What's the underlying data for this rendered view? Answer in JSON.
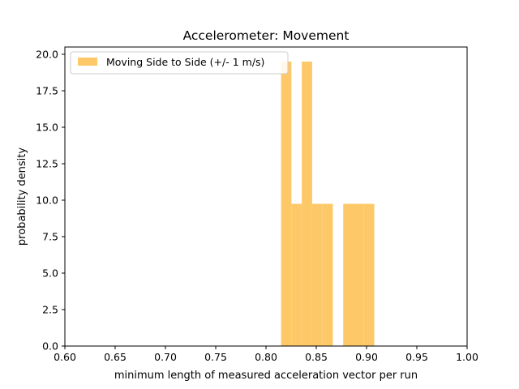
{
  "chart_data": {
    "type": "bar",
    "title": "Accelerometer: Movement",
    "xlabel": "minimum length of measured acceleration vector per run",
    "ylabel": "probability density",
    "xlim": [
      0.6,
      1.0
    ],
    "ylim": [
      0.0,
      20.5
    ],
    "x_ticks": [
      "0.60",
      "0.65",
      "0.70",
      "0.75",
      "0.80",
      "0.85",
      "0.90",
      "0.95",
      "1.00"
    ],
    "y_ticks": [
      "0.0",
      "2.5",
      "5.0",
      "7.5",
      "10.0",
      "12.5",
      "15.0",
      "17.5",
      "20.0"
    ],
    "grid": false,
    "legend_position": "top-left",
    "series": [
      {
        "name": "Moving Side to Side (+/- 1 m/s)",
        "color": "#fdc968",
        "bins": [
          {
            "x0": 0.815,
            "x1": 0.8253,
            "value": 19.5
          },
          {
            "x0": 0.8253,
            "x1": 0.8356,
            "value": 9.75
          },
          {
            "x0": 0.8356,
            "x1": 0.8459,
            "value": 19.5
          },
          {
            "x0": 0.8459,
            "x1": 0.8562,
            "value": 9.75
          },
          {
            "x0": 0.8562,
            "x1": 0.8665,
            "value": 9.75
          },
          {
            "x0": 0.8665,
            "x1": 0.8768,
            "value": 0
          },
          {
            "x0": 0.8768,
            "x1": 0.8871,
            "value": 9.75
          },
          {
            "x0": 0.8871,
            "x1": 0.8974,
            "value": 9.75
          },
          {
            "x0": 0.8974,
            "x1": 0.9077,
            "value": 9.75
          }
        ]
      }
    ]
  }
}
